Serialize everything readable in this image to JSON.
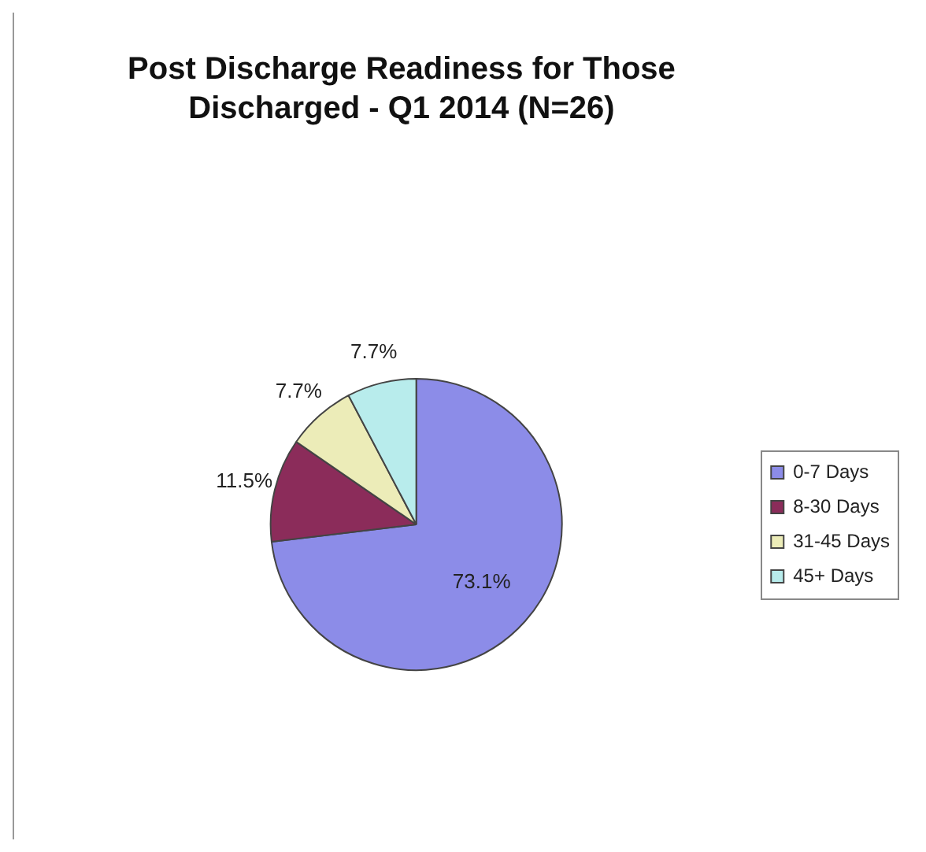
{
  "chart_data": {
    "type": "pie",
    "title": "Post Discharge Readiness for Those Discharged - Q1 2014 (N=26)",
    "categories": [
      "0-7 Days",
      "8-30 Days",
      "31-45 Days",
      "45+ Days"
    ],
    "values": [
      73.1,
      11.5,
      7.7,
      7.7
    ],
    "colors": [
      "#8c8ce8",
      "#8b2c5a",
      "#ececb8",
      "#b8ecec"
    ],
    "value_labels": [
      "73.1%",
      "11.5%",
      "7.7%",
      "7.7%"
    ],
    "legend": "right"
  }
}
